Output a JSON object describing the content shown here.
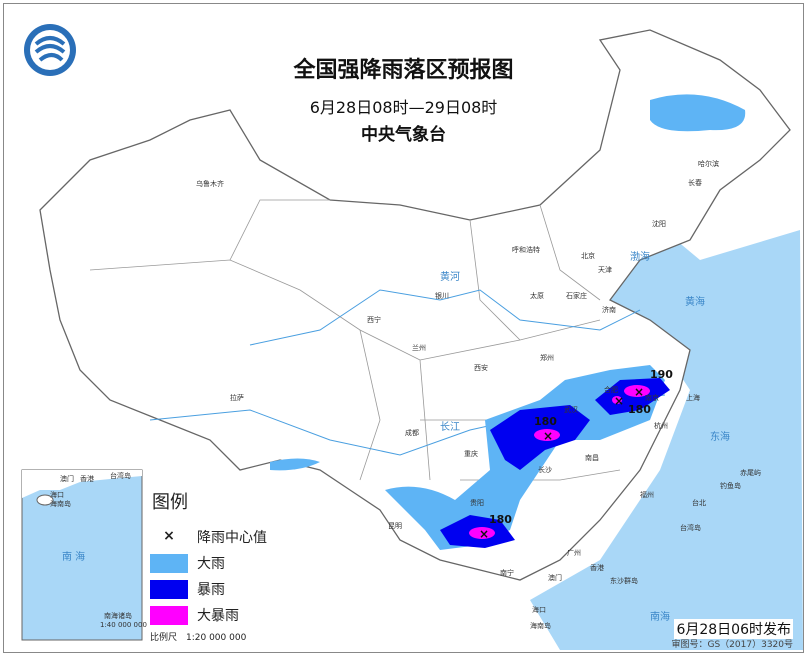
{
  "title": "全国强降雨落区预报图",
  "period": "6月28日08时—29日08时",
  "issuer": "中央气象台",
  "legend": {
    "title": "图例",
    "items": [
      {
        "label": "降雨中心值",
        "symbol": "×"
      },
      {
        "label": "大雨",
        "color": "#5eb4f5"
      },
      {
        "label": "暴雨",
        "color": "#0000f0"
      },
      {
        "label": "大暴雨",
        "color": "#ff00ff"
      }
    ],
    "scale": "比例尺　1:20 000 000"
  },
  "inset": {
    "title": "南海诸岛",
    "scale": "1:40 000 000",
    "sea": "南 海",
    "labels": [
      "香港",
      "澳门",
      "台湾岛",
      "海口",
      "海南岛"
    ]
  },
  "publish": "6月28日06时发布",
  "review_no": "审图号：GS（2017）3320号",
  "rain_center_values": [
    "180",
    "190",
    "180",
    "180"
  ],
  "cities": [
    "乌鲁木齐",
    "哈尔滨",
    "长春",
    "沈阳",
    "呼和浩特",
    "北京",
    "天津",
    "石家庄",
    "太原",
    "济南",
    "银川",
    "西宁",
    "兰州",
    "西安",
    "郑州",
    "合肥",
    "南京",
    "上海",
    "杭州",
    "武汉",
    "长沙",
    "南昌",
    "福州",
    "台北",
    "成都",
    "重庆",
    "贵阳",
    "昆明",
    "南宁",
    "广州",
    "香港",
    "澳门",
    "海口",
    "拉萨"
  ],
  "seas": [
    "渤海",
    "黄海",
    "东海",
    "南海"
  ],
  "islands": [
    "台湾岛",
    "海南岛",
    "东沙群岛",
    "钓鱼岛",
    "赤尾屿"
  ],
  "rivers": [
    "黄河",
    "长江"
  ],
  "colors": {
    "sea": "#a9d7f7",
    "land": "#ffffff",
    "border": "#777777"
  }
}
